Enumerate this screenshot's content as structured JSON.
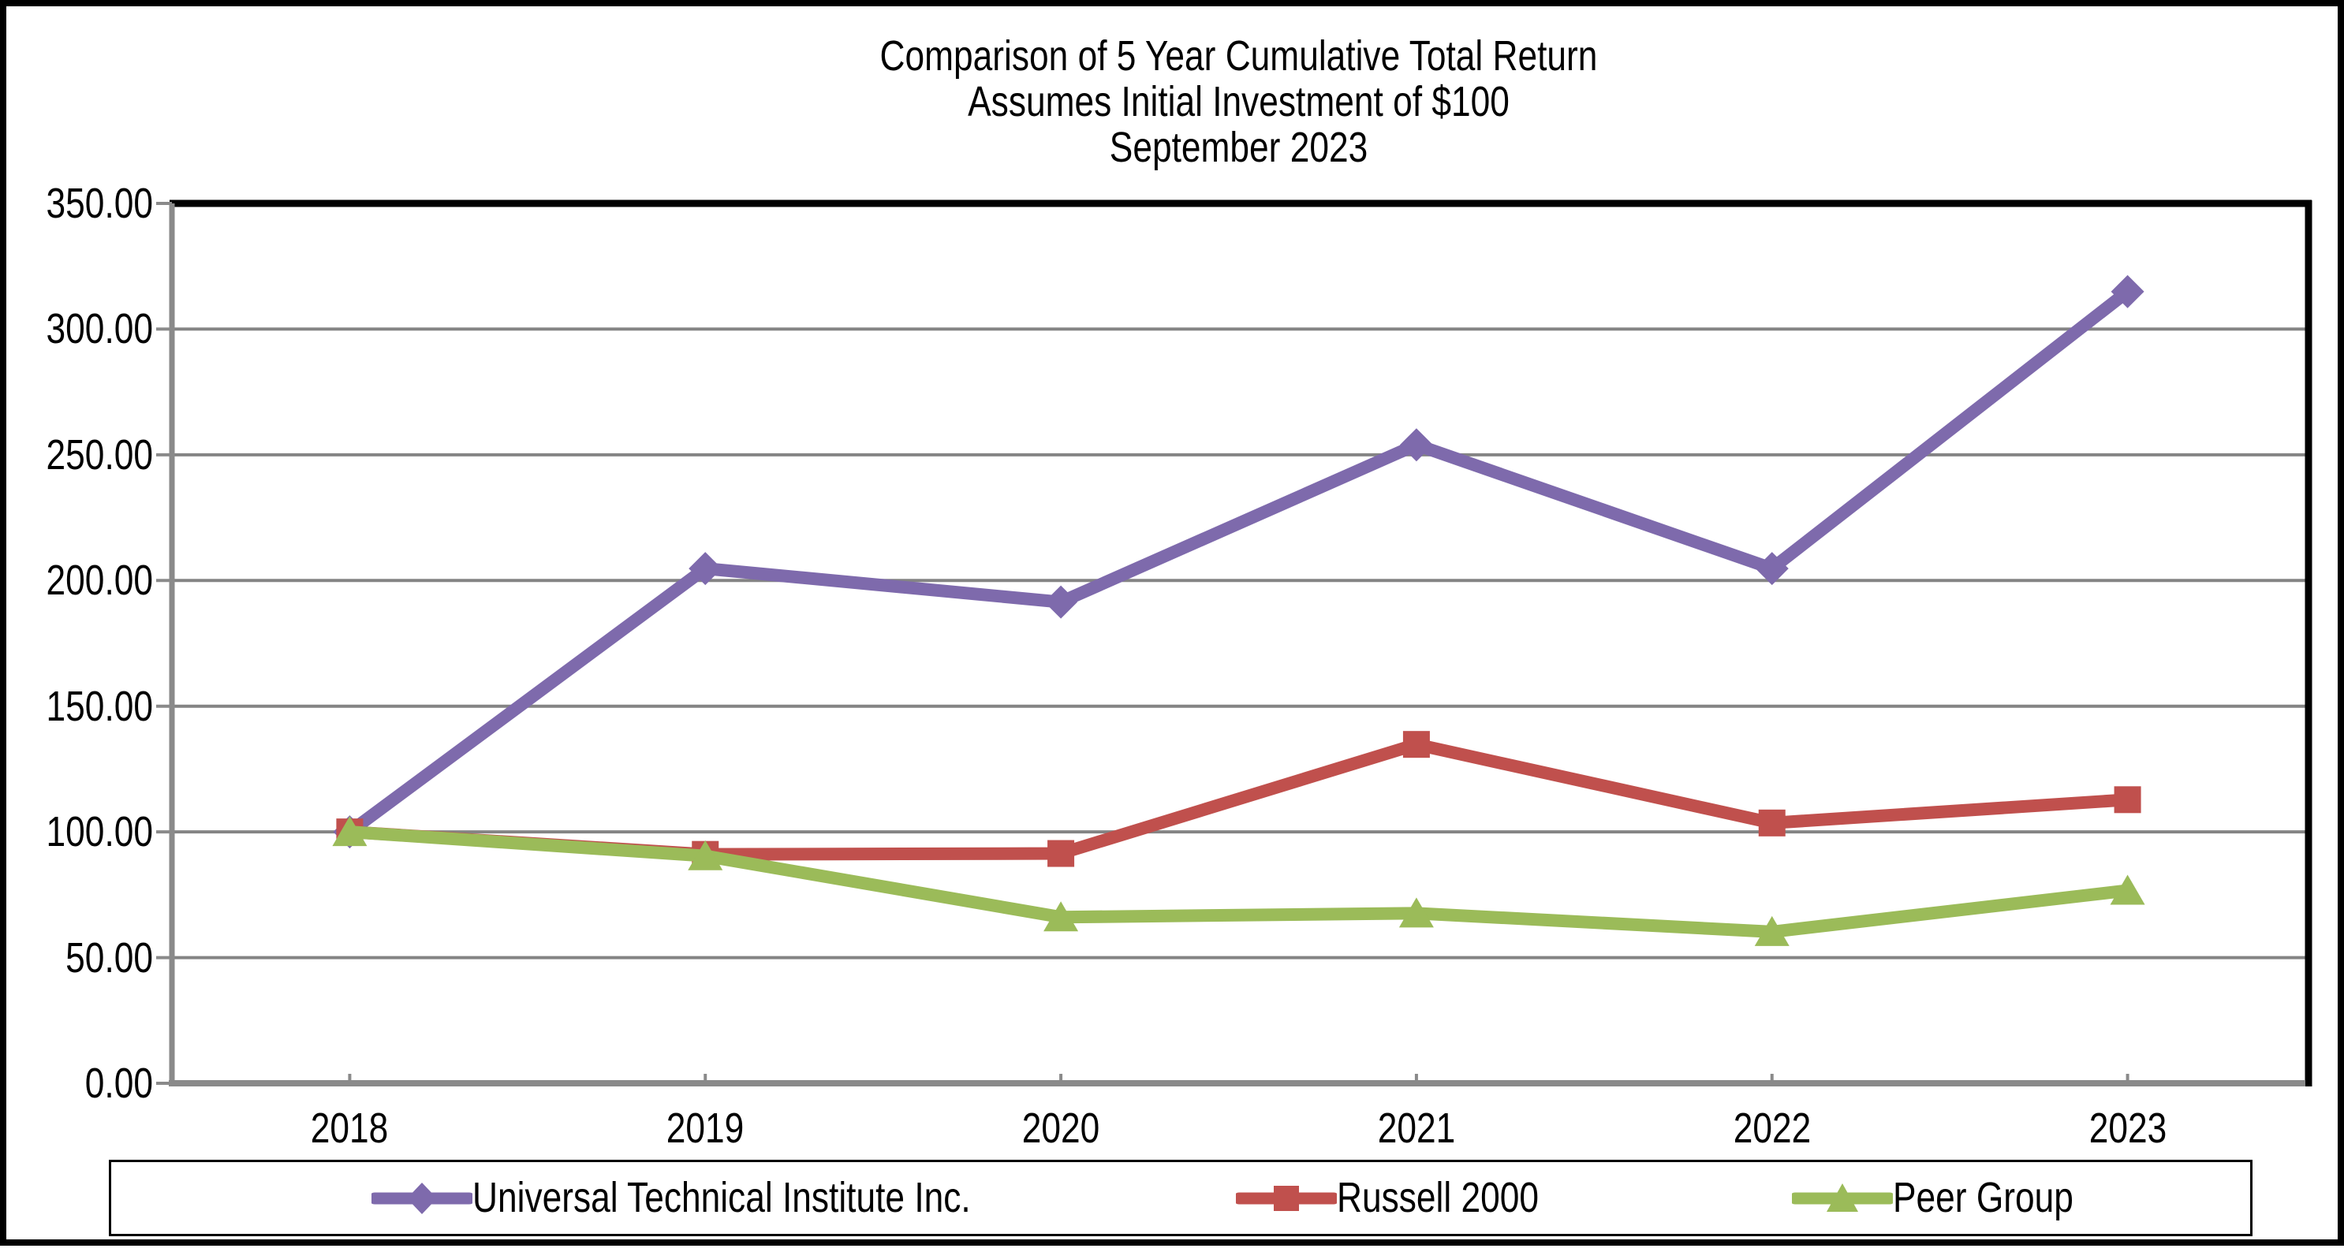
{
  "chart_data": {
    "type": "line",
    "title_lines": [
      "Comparison of 5 Year Cumulative Total Return",
      "Assumes Initial Investment of $100",
      "September 2023"
    ],
    "title": "Comparison of 5 Year Cumulative Total Return Assumes Initial Investment of $100 September 2023",
    "categories": [
      "2018",
      "2019",
      "2020",
      "2021",
      "2022",
      "2023"
    ],
    "series": [
      {
        "name": "Universal Technical Institute Inc.",
        "marker": "diamond",
        "color": "#7E6AAC",
        "values": [
          100.0,
          204.76,
          191.43,
          253.97,
          204.76,
          314.92
        ]
      },
      {
        "name": "Russell 2000",
        "marker": "square",
        "color": "#C0504D",
        "values": [
          100.0,
          91.05,
          91.41,
          134.8,
          103.55,
          112.81
        ]
      },
      {
        "name": "Peer Group",
        "marker": "triangle",
        "color": "#9BBB59",
        "values": [
          100.0,
          90.42,
          66.09,
          67.64,
          60.24,
          76.69
        ]
      }
    ],
    "xlabel": "",
    "ylabel": "",
    "ylim": [
      0,
      350
    ],
    "y_ticks": [
      0,
      50,
      100,
      150,
      200,
      250,
      300,
      350
    ],
    "y_tick_labels": [
      "0.00",
      "50.00",
      "100.00",
      "150.00",
      "200.00",
      "250.00",
      "300.00",
      "350.00"
    ],
    "grid": "horizontal",
    "legend_position": "bottom",
    "grid_color": "#848484",
    "axis_color": "#8A8A8A",
    "border_color": "#000000"
  }
}
